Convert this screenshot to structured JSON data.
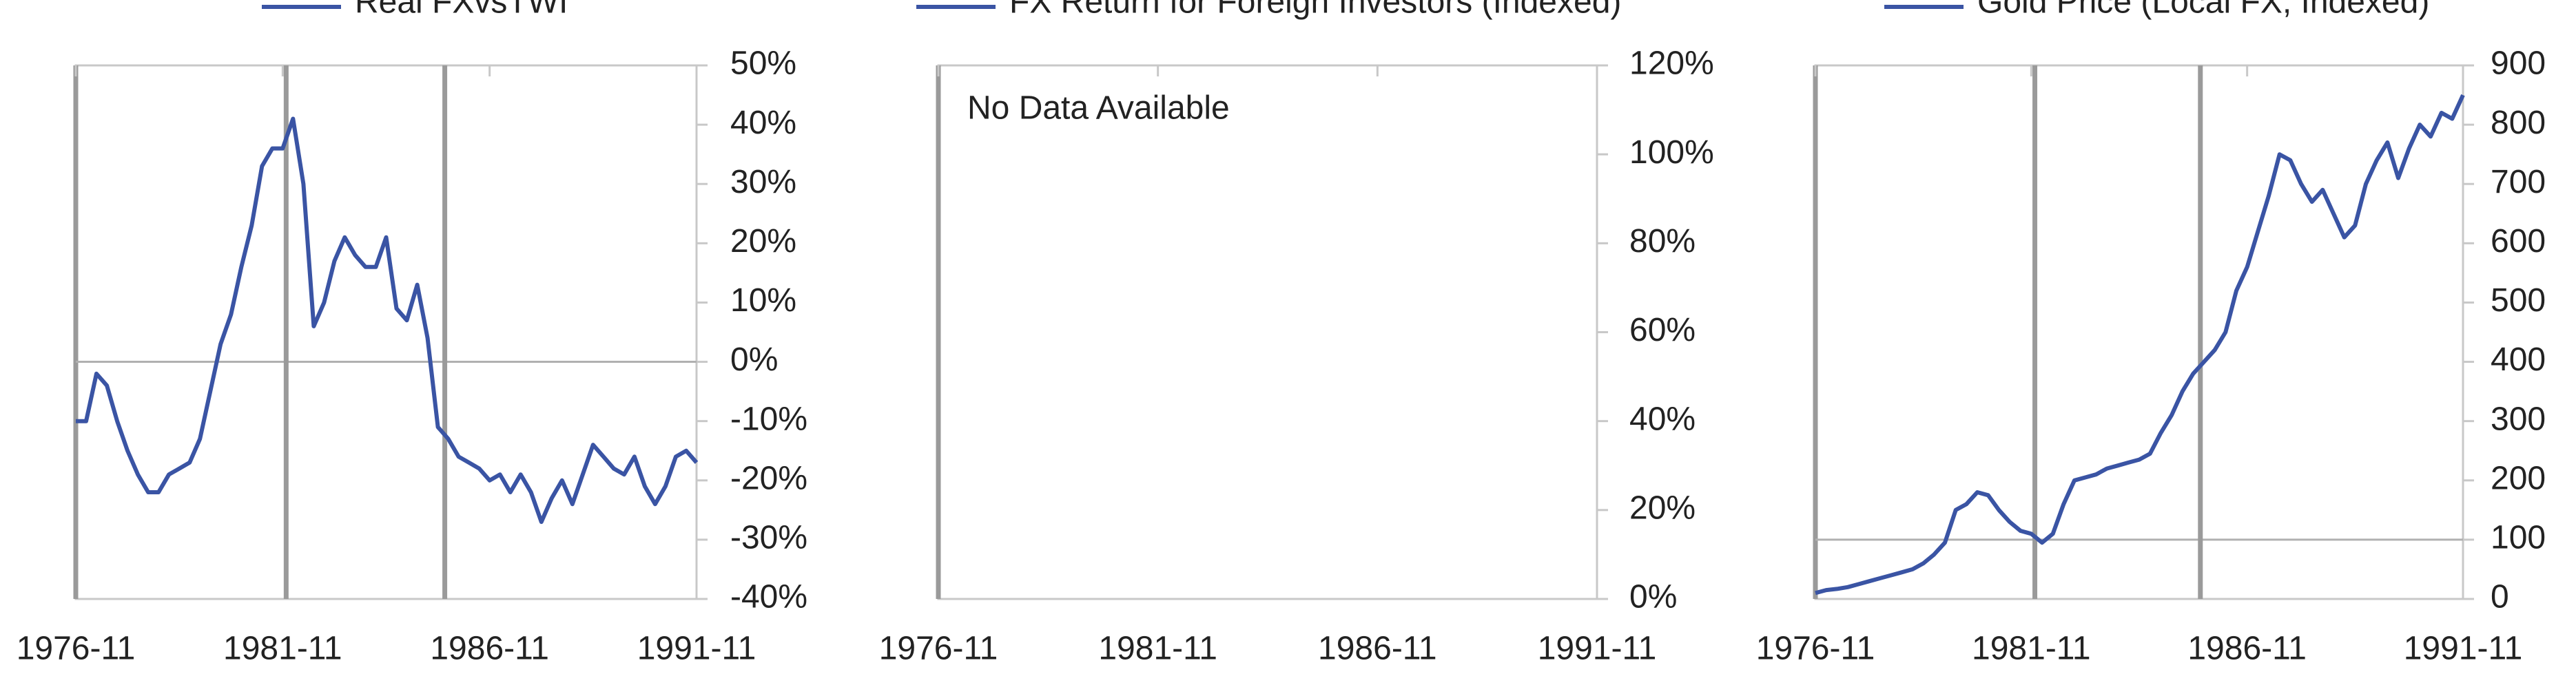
{
  "chart_data": [
    {
      "type": "line",
      "series": [
        {
          "name": "Real FXvsTWI",
          "color": "#3a54a4",
          "values": [
            -10,
            -10,
            -2,
            -4,
            -10,
            -15,
            -19,
            -22,
            -22,
            -19,
            -18,
            -17,
            -13,
            -5,
            3,
            8,
            16,
            23,
            33,
            36,
            36,
            41,
            30,
            6,
            10,
            17,
            21,
            18,
            16,
            16,
            21,
            9,
            7,
            13,
            4,
            -11,
            -13,
            -16,
            -17,
            -18,
            -20,
            -19,
            -22,
            -19,
            -22,
            -27,
            -23,
            -20,
            -24,
            -19,
            -14,
            -16,
            -18,
            -19,
            -16,
            -21,
            -24,
            -21,
            -16,
            -15,
            -17
          ]
        }
      ],
      "x": [
        "1976-11",
        "1977-02",
        "1977-05",
        "1977-08",
        "1977-11",
        "1978-02",
        "1978-05",
        "1978-08",
        "1978-11",
        "1979-02",
        "1979-05",
        "1979-08",
        "1979-11",
        "1980-02",
        "1980-05",
        "1980-08",
        "1980-11",
        "1981-02",
        "1981-05",
        "1981-08",
        "1981-11",
        "1982-02",
        "1982-05",
        "1982-08",
        "1982-11",
        "1983-02",
        "1983-05",
        "1983-08",
        "1983-11",
        "1984-02",
        "1984-05",
        "1984-08",
        "1984-11",
        "1985-02",
        "1985-05",
        "1985-08",
        "1985-11",
        "1986-02",
        "1986-05",
        "1986-08",
        "1986-11",
        "1987-02",
        "1987-05",
        "1987-08",
        "1987-11",
        "1988-02",
        "1988-05",
        "1988-08",
        "1988-11",
        "1989-02",
        "1989-05",
        "1989-08",
        "1989-11",
        "1990-02",
        "1990-05",
        "1990-08",
        "1990-11",
        "1991-02",
        "1991-05",
        "1991-08",
        "1991-11"
      ],
      "xlim": [
        "1976-11",
        "1991-11"
      ],
      "xticks": [
        "1976-11",
        "1981-11",
        "1986-11",
        "1991-11"
      ],
      "ylim": [
        -40,
        50
      ],
      "yticks": [
        {
          "value": -40,
          "label": "-40%"
        },
        {
          "value": -30,
          "label": "-30%"
        },
        {
          "value": -20,
          "label": "-20%"
        },
        {
          "value": -10,
          "label": "-10%"
        },
        {
          "value": 0,
          "label": "0%"
        },
        {
          "value": 10,
          "label": "10%"
        },
        {
          "value": 20,
          "label": "20%"
        },
        {
          "value": 30,
          "label": "30%"
        },
        {
          "value": 40,
          "label": "40%"
        },
        {
          "value": 50,
          "label": "50%"
        }
      ],
      "reference_line": 0,
      "event_lines": [
        "1981-12",
        "1985-10"
      ]
    },
    {
      "type": "line",
      "series": [
        {
          "name": "FX Return for Foreign Investors (Indexed)",
          "color": "#3a54a4",
          "values": []
        }
      ],
      "x": [],
      "annotation": "No Data Available",
      "xlim": [
        "1976-11",
        "1991-11"
      ],
      "xticks": [
        "1976-11",
        "1981-11",
        "1986-11",
        "1991-11"
      ],
      "ylim": [
        0,
        120
      ],
      "yticks": [
        {
          "value": 0,
          "label": "0%"
        },
        {
          "value": 20,
          "label": "20%"
        },
        {
          "value": 40,
          "label": "40%"
        },
        {
          "value": 60,
          "label": "60%"
        },
        {
          "value": 80,
          "label": "80%"
        },
        {
          "value": 100,
          "label": "100%"
        },
        {
          "value": 120,
          "label": "120%"
        }
      ]
    },
    {
      "type": "line",
      "series": [
        {
          "name": "Gold Price (Local FX, Indexed)",
          "color": "#3a54a4",
          "values": [
            10,
            15,
            17,
            20,
            25,
            30,
            35,
            40,
            45,
            50,
            60,
            75,
            95,
            150,
            160,
            180,
            175,
            150,
            130,
            115,
            110,
            95,
            110,
            160,
            200,
            205,
            210,
            220,
            225,
            230,
            235,
            245,
            280,
            310,
            350,
            380,
            400,
            420,
            450,
            520,
            560,
            620,
            680,
            750,
            740,
            700,
            670,
            690,
            650,
            610,
            630,
            700,
            740,
            770,
            710,
            760,
            800,
            780,
            820,
            810,
            850
          ]
        }
      ],
      "x": [
        "1976-11",
        "1977-02",
        "1977-05",
        "1977-08",
        "1977-11",
        "1978-02",
        "1978-05",
        "1978-08",
        "1978-11",
        "1979-02",
        "1979-05",
        "1979-08",
        "1979-11",
        "1980-02",
        "1980-05",
        "1980-08",
        "1980-11",
        "1981-02",
        "1981-05",
        "1981-08",
        "1981-11",
        "1982-02",
        "1982-05",
        "1982-08",
        "1982-11",
        "1983-02",
        "1983-05",
        "1983-08",
        "1983-11",
        "1984-02",
        "1984-05",
        "1984-08",
        "1984-11",
        "1985-02",
        "1985-05",
        "1985-08",
        "1985-11",
        "1986-02",
        "1986-05",
        "1986-08",
        "1986-11",
        "1987-02",
        "1987-05",
        "1987-08",
        "1987-11",
        "1988-02",
        "1988-05",
        "1988-08",
        "1988-11",
        "1989-02",
        "1989-05",
        "1989-08",
        "1989-11",
        "1990-02",
        "1990-05",
        "1990-08",
        "1990-11",
        "1991-02",
        "1991-05",
        "1991-08",
        "1991-11"
      ],
      "xlim": [
        "1976-11",
        "1991-11"
      ],
      "xticks": [
        "1976-11",
        "1981-11",
        "1986-11",
        "1991-11"
      ],
      "ylim": [
        0,
        900
      ],
      "yticks": [
        0,
        100,
        200,
        300,
        400,
        500,
        600,
        700,
        800,
        900
      ],
      "reference_line": 100,
      "event_lines": [
        "1981-12",
        "1985-10"
      ]
    }
  ]
}
